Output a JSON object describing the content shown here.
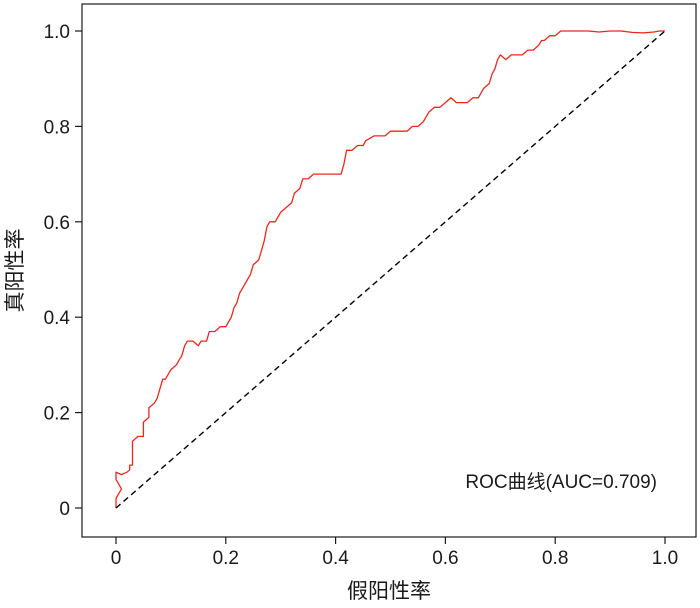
{
  "chart_data": {
    "type": "line",
    "title": "",
    "xlabel": "假阳性率",
    "ylabel": "真阳性率",
    "xlim": [
      0,
      1
    ],
    "ylim": [
      0,
      1
    ],
    "x_ticks": [
      "0",
      "0.2",
      "0.4",
      "0.6",
      "0.8",
      "1.0"
    ],
    "y_ticks": [
      "0",
      "0.2",
      "0.4",
      "0.6",
      "0.8",
      "1.0"
    ],
    "x_tick_values": [
      0,
      0.2,
      0.4,
      0.6,
      0.8,
      1.0
    ],
    "y_tick_values": [
      0,
      0.2,
      0.4,
      0.6,
      0.8,
      1.0
    ],
    "grid": false,
    "legend_text": "ROC曲线(AUC=0.709)",
    "legend_position": "bottom-right",
    "series": [
      {
        "name": "ROC曲线",
        "color": "#e8281e",
        "points": [
          [
            0,
            0
          ],
          [
            0,
            0.02
          ],
          [
            0.005,
            0.03
          ],
          [
            0.01,
            0.04
          ],
          [
            0.005,
            0.05
          ],
          [
            0.0,
            0.06
          ],
          [
            0.0,
            0.075
          ],
          [
            0.01,
            0.07
          ],
          [
            0.02,
            0.075
          ],
          [
            0.025,
            0.08
          ],
          [
            0.025,
            0.09
          ],
          [
            0.03,
            0.09
          ],
          [
            0.03,
            0.14
          ],
          [
            0.04,
            0.15
          ],
          [
            0.05,
            0.15
          ],
          [
            0.05,
            0.18
          ],
          [
            0.06,
            0.19
          ],
          [
            0.06,
            0.21
          ],
          [
            0.07,
            0.22
          ],
          [
            0.075,
            0.23
          ],
          [
            0.08,
            0.25
          ],
          [
            0.085,
            0.27
          ],
          [
            0.09,
            0.27
          ],
          [
            0.1,
            0.29
          ],
          [
            0.11,
            0.3
          ],
          [
            0.115,
            0.31
          ],
          [
            0.12,
            0.32
          ],
          [
            0.125,
            0.34
          ],
          [
            0.13,
            0.35
          ],
          [
            0.14,
            0.35
          ],
          [
            0.15,
            0.34
          ],
          [
            0.155,
            0.35
          ],
          [
            0.165,
            0.35
          ],
          [
            0.17,
            0.37
          ],
          [
            0.18,
            0.37
          ],
          [
            0.19,
            0.38
          ],
          [
            0.2,
            0.38
          ],
          [
            0.205,
            0.39
          ],
          [
            0.21,
            0.4
          ],
          [
            0.215,
            0.42
          ],
          [
            0.22,
            0.43
          ],
          [
            0.225,
            0.45
          ],
          [
            0.23,
            0.46
          ],
          [
            0.24,
            0.48
          ],
          [
            0.245,
            0.49
          ],
          [
            0.25,
            0.51
          ],
          [
            0.26,
            0.52
          ],
          [
            0.265,
            0.54
          ],
          [
            0.27,
            0.56
          ],
          [
            0.275,
            0.59
          ],
          [
            0.28,
            0.6
          ],
          [
            0.29,
            0.6
          ],
          [
            0.3,
            0.62
          ],
          [
            0.31,
            0.63
          ],
          [
            0.32,
            0.64
          ],
          [
            0.325,
            0.66
          ],
          [
            0.335,
            0.67
          ],
          [
            0.34,
            0.69
          ],
          [
            0.35,
            0.69
          ],
          [
            0.36,
            0.7
          ],
          [
            0.37,
            0.7
          ],
          [
            0.38,
            0.7
          ],
          [
            0.39,
            0.7
          ],
          [
            0.4,
            0.7
          ],
          [
            0.41,
            0.7
          ],
          [
            0.415,
            0.72
          ],
          [
            0.42,
            0.75
          ],
          [
            0.43,
            0.75
          ],
          [
            0.44,
            0.76
          ],
          [
            0.45,
            0.76
          ],
          [
            0.455,
            0.77
          ],
          [
            0.47,
            0.78
          ],
          [
            0.48,
            0.78
          ],
          [
            0.49,
            0.78
          ],
          [
            0.5,
            0.79
          ],
          [
            0.51,
            0.79
          ],
          [
            0.52,
            0.79
          ],
          [
            0.53,
            0.79
          ],
          [
            0.54,
            0.8
          ],
          [
            0.55,
            0.8
          ],
          [
            0.56,
            0.81
          ],
          [
            0.57,
            0.83
          ],
          [
            0.58,
            0.84
          ],
          [
            0.59,
            0.84
          ],
          [
            0.6,
            0.85
          ],
          [
            0.61,
            0.86
          ],
          [
            0.62,
            0.85
          ],
          [
            0.63,
            0.85
          ],
          [
            0.64,
            0.85
          ],
          [
            0.65,
            0.86
          ],
          [
            0.66,
            0.86
          ],
          [
            0.67,
            0.88
          ],
          [
            0.68,
            0.89
          ],
          [
            0.685,
            0.91
          ],
          [
            0.69,
            0.92
          ],
          [
            0.695,
            0.94
          ],
          [
            0.7,
            0.95
          ],
          [
            0.71,
            0.94
          ],
          [
            0.72,
            0.95
          ],
          [
            0.73,
            0.95
          ],
          [
            0.74,
            0.95
          ],
          [
            0.75,
            0.96
          ],
          [
            0.76,
            0.96
          ],
          [
            0.77,
            0.97
          ],
          [
            0.775,
            0.98
          ],
          [
            0.78,
            0.98
          ],
          [
            0.79,
            0.99
          ],
          [
            0.8,
            0.99
          ],
          [
            0.81,
            1.0
          ],
          [
            0.82,
            1.0
          ],
          [
            0.84,
            1.0
          ],
          [
            0.86,
            1.0
          ],
          [
            0.88,
            0.998
          ],
          [
            0.9,
            1.0
          ],
          [
            0.92,
            1.0
          ],
          [
            0.94,
            0.997
          ],
          [
            0.96,
            0.996
          ],
          [
            0.98,
            0.998
          ],
          [
            0.99,
            1.0
          ],
          [
            1.0,
            1.0
          ]
        ]
      },
      {
        "name": "",
        "color": "#000000",
        "dashed": true,
        "points": [
          [
            0,
            0
          ],
          [
            1,
            1
          ]
        ]
      }
    ]
  }
}
